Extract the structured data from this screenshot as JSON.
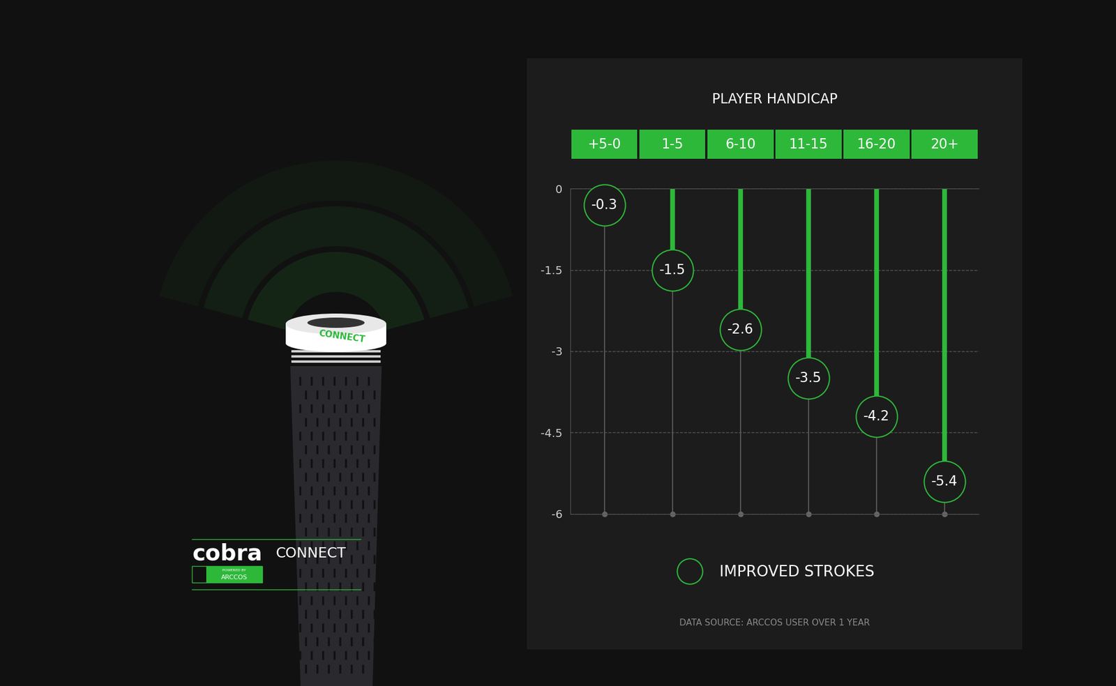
{
  "chart_data": {
    "type": "lollipop",
    "title": "PLAYER HANDICAP",
    "categories": [
      "+5-0",
      "1-5",
      "6-10",
      "11-15",
      "16-20",
      "20+"
    ],
    "series": [
      {
        "name": "IMPROVED STROKES",
        "color": "#2eb83a",
        "values": [
          -0.3,
          -1.5,
          -2.6,
          -3.5,
          -4.2,
          -5.4
        ],
        "marker": "circle"
      }
    ],
    "ylim": [
      -6,
      0
    ],
    "yticks": [
      0,
      -1.5,
      -3,
      -4.5,
      -6
    ],
    "grid": true,
    "data_labels": true,
    "legend": "bottom",
    "source": "DATA SOURCE: ARCCOS USER OVER 1 YEAR"
  },
  "logo": {
    "brand": "cobra",
    "product": "CONNECT",
    "powered_by": "POWERED BY",
    "partner": "ARCCOS"
  }
}
